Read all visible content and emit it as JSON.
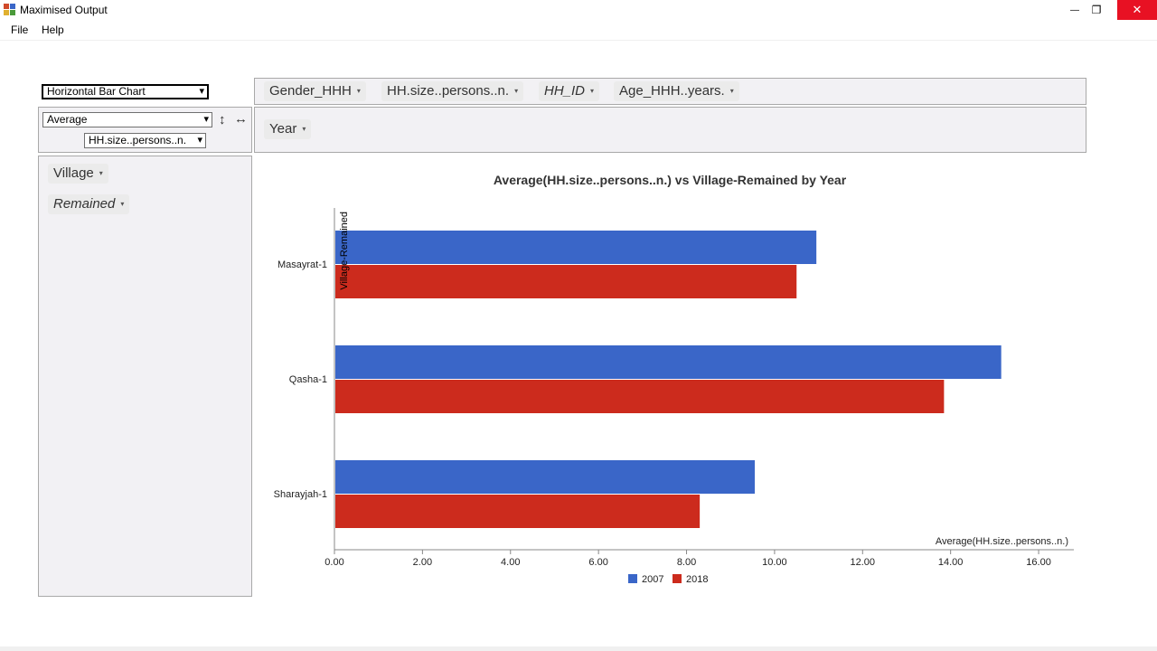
{
  "window": {
    "title": "Maximised Output",
    "minimize_glyph": "—",
    "restore_glyph": "❐",
    "close_glyph": "✕"
  },
  "menu": [
    "File",
    "Help"
  ],
  "controls": {
    "chart_type": "Horizontal Bar Chart",
    "aggregation": "Average",
    "value_field": "HH.size..persons..n.",
    "swap_vertical_glyph": "↕",
    "swap_horizontal_glyph": "↔",
    "dropdown_glyph": "▾"
  },
  "fields": {
    "unused": [
      {
        "label": "Gender_HHH",
        "italic": false
      },
      {
        "label": "HH.size..persons..n.",
        "italic": false
      },
      {
        "label": "HH_ID",
        "italic": true
      },
      {
        "label": "Age_HHH..years.",
        "italic": false
      }
    ],
    "columns": [
      {
        "label": "Year",
        "italic": false
      }
    ],
    "rows": [
      {
        "label": "Village",
        "italic": false
      },
      {
        "label": "Remained",
        "italic": true
      }
    ]
  },
  "chart_data": {
    "type": "bar",
    "orientation": "horizontal",
    "title": "Average(HH.size..persons..n.) vs Village-Remained by Year",
    "xlabel": "Average(HH.size..persons..n.)",
    "ylabel": "Village-Remained",
    "categories": [
      "Masayrat-1",
      "Qasha-1",
      "Sharayjah-1"
    ],
    "series": [
      {
        "name": "2007",
        "values": [
          10.95,
          15.15,
          9.55
        ]
      },
      {
        "name": "2018",
        "values": [
          10.5,
          13.85,
          8.3
        ]
      }
    ],
    "xlim": [
      0,
      16.8
    ],
    "ticks": [
      0,
      2,
      4,
      6,
      8,
      10,
      12,
      14,
      16
    ],
    "tick_labels": [
      "0.00",
      "2.00",
      "4.00",
      "6.00",
      "8.00",
      "10.00",
      "12.00",
      "14.00",
      "16.00"
    ],
    "grid": false,
    "legend_position": "bottom"
  },
  "colors": {
    "series_2007": "#3a66c8",
    "series_2018": "#cc2b1d",
    "panel_bg": "#f2f1f4",
    "close_button": "#e81123"
  }
}
